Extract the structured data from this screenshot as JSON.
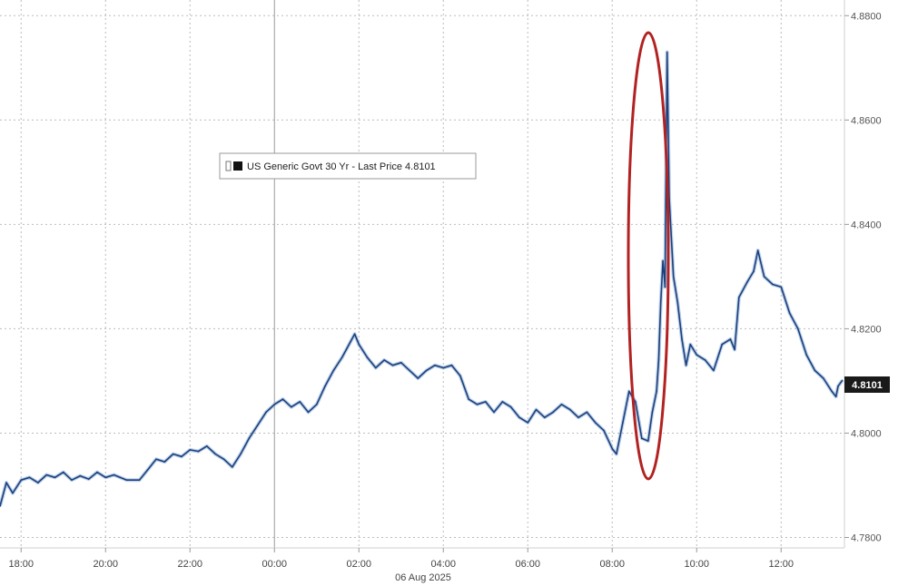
{
  "chart_data": {
    "type": "line",
    "ylim": [
      4.778,
      4.883
    ],
    "y_ticks": [
      4.78,
      4.8,
      4.82,
      4.84,
      4.86,
      4.88
    ],
    "y_tick_labels": [
      "4.7800",
      "4.8000",
      "4.8200",
      "4.8400",
      "4.8600",
      "4.8800"
    ],
    "xlim": [
      17.5,
      37.5
    ],
    "x_ticks": [
      18,
      20,
      22,
      24,
      26,
      28,
      30,
      32,
      34,
      36
    ],
    "x_tick_labels": [
      "18:00",
      "20:00",
      "22:00",
      "00:00",
      "02:00",
      "04:00",
      "06:00",
      "08:00",
      "10:00",
      "12:00"
    ],
    "date_label": "06 Aug 2025",
    "grid": true,
    "legend": {
      "label": "US Generic Govt 30 Yr - Last Price 4.8101",
      "placement": "top-center"
    },
    "last_price_label": "4.8101",
    "series": [
      {
        "name": "US Generic Govt 30 Yr - Last Price",
        "color": "#1f3f7a",
        "points": [
          [
            17.5,
            4.786
          ],
          [
            17.65,
            4.7905
          ],
          [
            17.8,
            4.7885
          ],
          [
            18.0,
            4.791
          ],
          [
            18.2,
            4.7915
          ],
          [
            18.4,
            4.7905
          ],
          [
            18.6,
            4.792
          ],
          [
            18.8,
            4.7915
          ],
          [
            19.0,
            4.7925
          ],
          [
            19.2,
            4.791
          ],
          [
            19.4,
            4.7918
          ],
          [
            19.6,
            4.7912
          ],
          [
            19.8,
            4.7925
          ],
          [
            20.0,
            4.7915
          ],
          [
            20.2,
            4.792
          ],
          [
            20.5,
            4.791
          ],
          [
            20.8,
            4.791
          ],
          [
            21.0,
            4.793
          ],
          [
            21.2,
            4.795
          ],
          [
            21.4,
            4.7945
          ],
          [
            21.6,
            4.796
          ],
          [
            21.8,
            4.7955
          ],
          [
            22.0,
            4.7968
          ],
          [
            22.2,
            4.7965
          ],
          [
            22.4,
            4.7975
          ],
          [
            22.6,
            4.796
          ],
          [
            22.8,
            4.795
          ],
          [
            23.0,
            4.7935
          ],
          [
            23.2,
            4.796
          ],
          [
            23.4,
            4.799
          ],
          [
            23.6,
            4.8015
          ],
          [
            23.8,
            4.804
          ],
          [
            24.0,
            4.8055
          ],
          [
            24.2,
            4.8065
          ],
          [
            24.4,
            4.805
          ],
          [
            24.6,
            4.806
          ],
          [
            24.8,
            4.804
          ],
          [
            25.0,
            4.8055
          ],
          [
            25.2,
            4.809
          ],
          [
            25.4,
            4.812
          ],
          [
            25.6,
            4.8145
          ],
          [
            25.8,
            4.8175
          ],
          [
            25.9,
            4.819
          ],
          [
            26.0,
            4.817
          ],
          [
            26.2,
            4.8145
          ],
          [
            26.4,
            4.8125
          ],
          [
            26.6,
            4.814
          ],
          [
            26.8,
            4.813
          ],
          [
            27.0,
            4.8135
          ],
          [
            27.2,
            4.812
          ],
          [
            27.4,
            4.8105
          ],
          [
            27.6,
            4.812
          ],
          [
            27.8,
            4.813
          ],
          [
            28.0,
            4.8125
          ],
          [
            28.2,
            4.813
          ],
          [
            28.4,
            4.811
          ],
          [
            28.6,
            4.8065
          ],
          [
            28.8,
            4.8055
          ],
          [
            29.0,
            4.806
          ],
          [
            29.2,
            4.804
          ],
          [
            29.4,
            4.806
          ],
          [
            29.6,
            4.805
          ],
          [
            29.8,
            4.803
          ],
          [
            30.0,
            4.802
          ],
          [
            30.2,
            4.8045
          ],
          [
            30.4,
            4.803
          ],
          [
            30.6,
            4.804
          ],
          [
            30.8,
            4.8055
          ],
          [
            31.0,
            4.8045
          ],
          [
            31.2,
            4.803
          ],
          [
            31.4,
            4.804
          ],
          [
            31.6,
            4.802
          ],
          [
            31.8,
            4.8005
          ],
          [
            32.0,
            4.797
          ],
          [
            32.1,
            4.796
          ],
          [
            32.25,
            4.802
          ],
          [
            32.4,
            4.808
          ],
          [
            32.55,
            4.806
          ],
          [
            32.7,
            4.799
          ],
          [
            32.85,
            4.7985
          ],
          [
            32.95,
            4.804
          ],
          [
            33.05,
            4.808
          ],
          [
            33.1,
            4.814
          ],
          [
            33.15,
            4.825
          ],
          [
            33.2,
            4.833
          ],
          [
            33.25,
            4.828
          ],
          [
            33.3,
            4.873
          ],
          [
            33.35,
            4.845
          ],
          [
            33.45,
            4.83
          ],
          [
            33.55,
            4.825
          ],
          [
            33.65,
            4.818
          ],
          [
            33.75,
            4.813
          ],
          [
            33.85,
            4.817
          ],
          [
            34.0,
            4.815
          ],
          [
            34.2,
            4.814
          ],
          [
            34.4,
            4.812
          ],
          [
            34.6,
            4.817
          ],
          [
            34.8,
            4.818
          ],
          [
            34.9,
            4.816
          ],
          [
            35.0,
            4.826
          ],
          [
            35.2,
            4.829
          ],
          [
            35.35,
            4.831
          ],
          [
            35.45,
            4.835
          ],
          [
            35.6,
            4.83
          ],
          [
            35.8,
            4.8285
          ],
          [
            36.0,
            4.828
          ],
          [
            36.2,
            4.823
          ],
          [
            36.4,
            4.82
          ],
          [
            36.6,
            4.815
          ],
          [
            36.8,
            4.812
          ],
          [
            37.0,
            4.8105
          ],
          [
            37.2,
            4.808
          ],
          [
            37.3,
            4.807
          ],
          [
            37.35,
            4.809
          ],
          [
            37.45,
            4.8101
          ]
        ]
      }
    ]
  }
}
